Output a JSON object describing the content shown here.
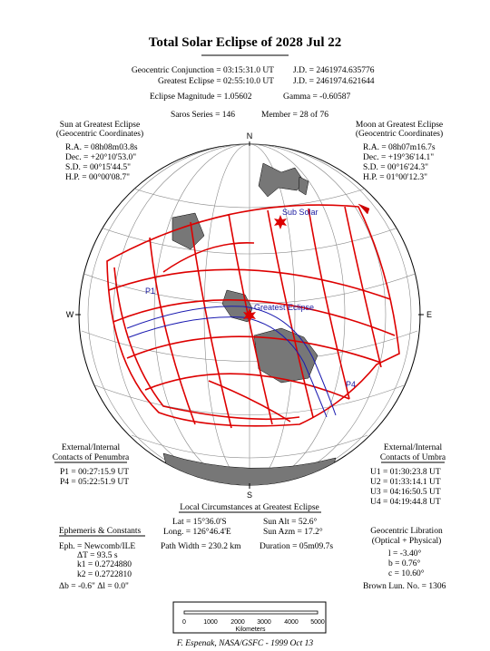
{
  "header": {
    "title": "Total Solar Eclipse of 2028 Jul 22",
    "lines": [
      [
        "Geocentric Conjunction =  03:15:31.0 UT",
        "J.D. =  2461974.635776"
      ],
      [
        "Greatest Eclipse =  02:55:10.0 UT",
        "J.D. =  2461974.621644"
      ],
      [
        "Eclipse Magnitude =  1.05602",
        "Gamma = -0.60587"
      ],
      [
        "Saros Series = 146",
        "Member = 28 of 76"
      ]
    ]
  },
  "sun": {
    "title": [
      "Sun at Greatest Eclipse",
      "(Geocentric Coordinates)"
    ],
    "rows": [
      "R.A. = 08h08m03.8s",
      "Dec. = +20°10'53.0\"",
      "S.D. =  00°15'44.5\"",
      "H.P. =  00°00'08.7\""
    ]
  },
  "moon": {
    "title": [
      "Moon at Greatest Eclipse",
      "(Geocentric Coordinates)"
    ],
    "rows": [
      "R.A. = 08h07m16.7s",
      "Dec. = +19°36'14.1\"",
      "S.D. =  00°16'24.3\"",
      "H.P. =  01°00'12.3\""
    ]
  },
  "compass": {
    "n": "N",
    "s": "S",
    "w": "W",
    "e": "E"
  },
  "map_labels": {
    "sub_solar": "Sub Solar",
    "p1": "P1",
    "greatest": "Greatest Eclipse",
    "p4": "P4"
  },
  "penumbra": {
    "title": [
      "External/Internal",
      "Contacts of Penumbra"
    ],
    "rows": [
      "P1 = 00:27:15.9 UT",
      "P4 = 05:22:51.9 UT"
    ]
  },
  "umbra": {
    "title": [
      "External/Internal",
      "Contacts of Umbra"
    ],
    "rows": [
      "U1 = 01:30:23.8 UT",
      "U2 = 01:33:14.1 UT",
      "U3 = 04:16:50.5 UT",
      "U4 = 04:19:44.8 UT"
    ]
  },
  "local": {
    "title": "Local Circumstances at Greatest Eclipse",
    "rows": [
      [
        "Lat =   15°36.0'S",
        "Sun Alt =   52.6°"
      ],
      [
        "Long. =  126°46.4'E",
        "Sun Azm =   17.2°"
      ],
      [
        "Path Width = 230.2 km",
        "Duration =  05m09.7s"
      ]
    ]
  },
  "ephemeris": {
    "title": "Ephemeris & Constants",
    "rows": [
      "Eph. = Newcomb/ILE",
      "ΔT =     93.5 s",
      "k1 = 0.2724880",
      "k2 = 0.2722810",
      "Δb =  -0.6\"    Δl =   0.0\""
    ]
  },
  "libration": {
    "title": [
      "Geocentric Libration",
      "(Optical + Physical)"
    ],
    "rows": [
      "l =   -3.40°",
      "b =    0.76°",
      "c =  10.60°",
      "Brown Lun. No. = 1306"
    ]
  },
  "scale": {
    "ticks": [
      "0",
      "1000",
      "2000",
      "3000",
      "4000",
      "5000"
    ],
    "label": "Kilometers"
  },
  "footer": "F. Espenak, NASA/GSFC - 1999 Oct  13"
}
